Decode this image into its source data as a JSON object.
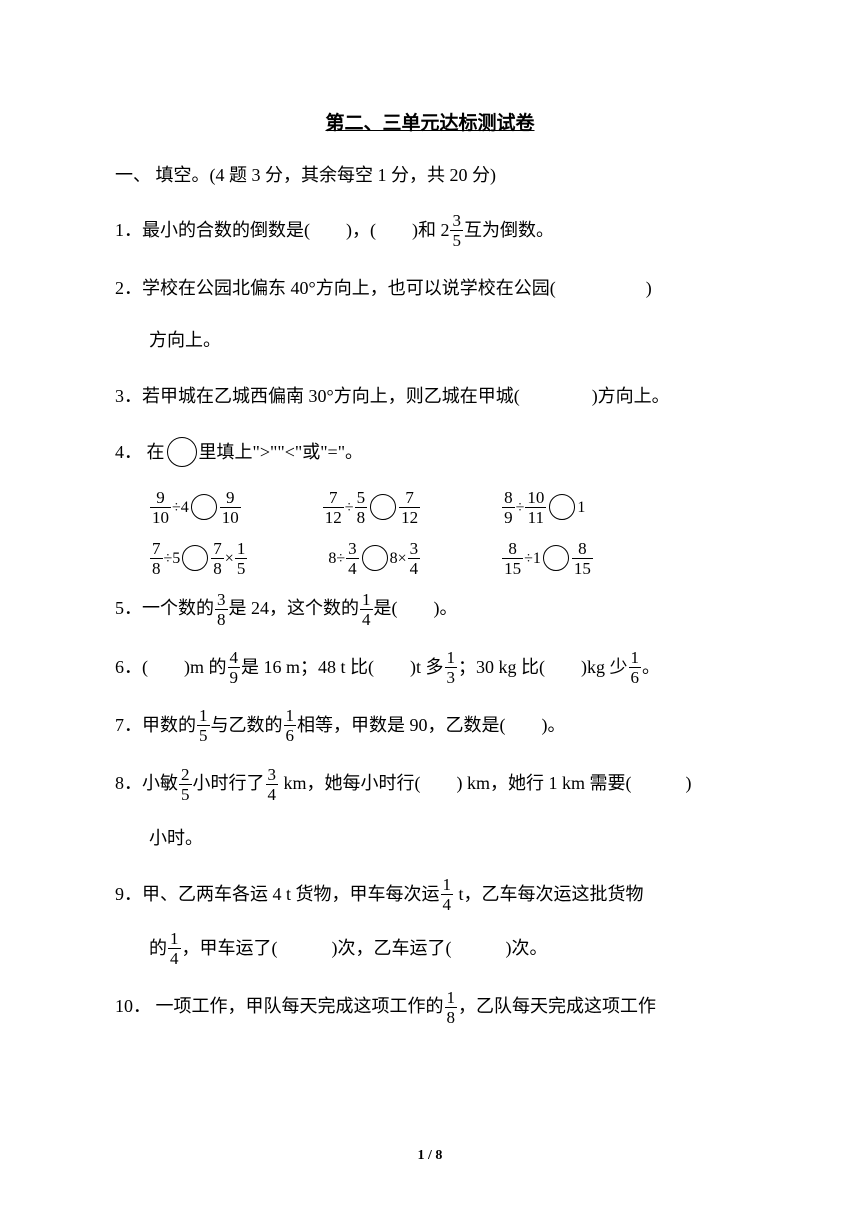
{
  "title": "第二、三单元达标测试卷",
  "section1": {
    "heading": "一、 填空。(4 题 3 分，其余每空 1 分，共 20 分)",
    "q1": {
      "prefix": "1．最小的合数的倒数是(　　)，(　　)和 2",
      "frac_num": "3",
      "frac_den": "5",
      "suffix": "互为倒数。"
    },
    "q2": {
      "line1": "2．学校在公园北偏东 40°方向上，也可以说学校在公园(　　　　　)",
      "line2": "方向上。"
    },
    "q3": "3．若甲城在乙城西偏南 30°方向上，则乙城在甲城(　　　　)方向上。",
    "q4": {
      "prefix": "4． 在",
      "suffix": "里填上\">\"\"<\"或\"=\"。",
      "row1": {
        "c1": {
          "a_num": "9",
          "a_den": "10",
          "op": "÷4",
          "b_num": "9",
          "b_den": "10"
        },
        "c2": {
          "a_num": "7",
          "a_den": "12",
          "op1": "÷",
          "m_num": "5",
          "m_den": "8",
          "b_num": "7",
          "b_den": "12"
        },
        "c3": {
          "a_num": "8",
          "a_den": "9",
          "op1": "÷",
          "m_num": "10",
          "m_den": "11",
          "suffix": "1"
        }
      },
      "row2": {
        "c1": {
          "a_num": "7",
          "a_den": "8",
          "op1": "÷5",
          "b_num": "7",
          "b_den": "8",
          "op2": "×",
          "c_num": "1",
          "c_den": "5"
        },
        "c2": {
          "prefix": "8÷",
          "a_num": "3",
          "a_den": "4",
          "mid": "8×",
          "b_num": "3",
          "b_den": "4"
        },
        "c3": {
          "a_num": "8",
          "a_den": "15",
          "op": "÷1",
          "b_num": "8",
          "b_den": "15"
        }
      }
    },
    "q5": {
      "prefix": "5．一个数的",
      "f1_num": "3",
      "f1_den": "8",
      "mid": "是 24，这个数的",
      "f2_num": "1",
      "f2_den": "4",
      "suffix": "是(　　)。"
    },
    "q6": {
      "prefix": "6．(　　)m 的",
      "f1_num": "4",
      "f1_den": "9",
      "mid1": "是 16 m；48 t 比(　　)t 多",
      "f2_num": "1",
      "f2_den": "3",
      "mid2": "；30 kg 比(　　)kg 少",
      "f3_num": "1",
      "f3_den": "6",
      "suffix": "。"
    },
    "q7": {
      "prefix": "7．甲数的",
      "f1_num": "1",
      "f1_den": "5",
      "mid": "与乙数的",
      "f2_num": "1",
      "f2_den": "6",
      "suffix": "相等，甲数是 90，乙数是(　　)。"
    },
    "q8": {
      "prefix": "8．小敏",
      "f1_num": "2",
      "f1_den": "5",
      "mid1": "小时行了",
      "f2_num": "3",
      "f2_den": "4",
      "mid2": " km，她每小时行(　　) km，她行 1 km 需要(　　　)",
      "line2": "小时。"
    },
    "q9": {
      "prefix": "9．甲、乙两车各运 4 t 货物，甲车每次运",
      "f1_num": "1",
      "f1_den": "4",
      "mid": " t，乙车每次运这批货物",
      "line2_prefix": "的",
      "f2_num": "1",
      "f2_den": "4",
      "line2_suffix": "，甲车运了(　　　)次，乙车运了(　　　)次。"
    },
    "q10": {
      "prefix": "10． 一项工作，甲队每天完成这项工作的",
      "f1_num": "1",
      "f1_den": "8",
      "suffix": "，乙队每天完成这项工作"
    }
  },
  "footer": "1 / 8"
}
